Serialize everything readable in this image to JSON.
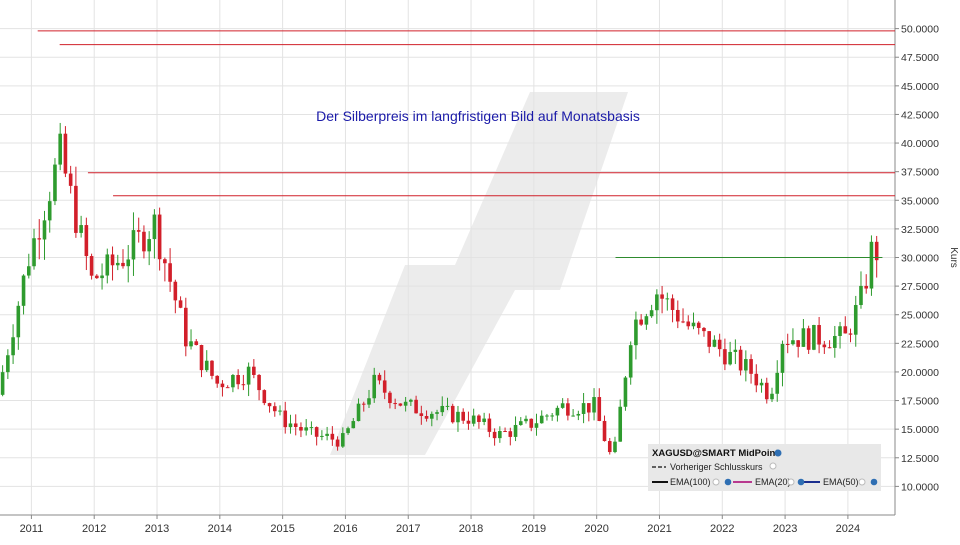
{
  "chart_data": {
    "type": "candlestick",
    "title": "Der Silberpreis im langfristigen Bild auf Monatsbasis",
    "ylabel": "Kurs",
    "xlabel": "",
    "ylim": [
      7.5,
      52.5
    ],
    "xlim": [
      2010.5,
      2024.75
    ],
    "y_ticks": [
      "10.0000",
      "12.5000",
      "15.0000",
      "17.5000",
      "20.0000",
      "22.5000",
      "25.0000",
      "27.5000",
      "30.0000",
      "32.5000",
      "35.0000",
      "37.5000",
      "40.0000",
      "42.5000",
      "45.0000",
      "47.5000",
      "50.0000"
    ],
    "x_ticks": [
      "2011",
      "2012",
      "2013",
      "2014",
      "2015",
      "2016",
      "2017",
      "2018",
      "2019",
      "2020",
      "2021",
      "2022",
      "2023",
      "2024"
    ],
    "grid": true,
    "legend_position": "bottom-right",
    "colors": {
      "up": "#2e9b2e",
      "down": "#d21f2a",
      "resistance": "#d0202a",
      "support": "#2e8b2e",
      "title": "#1a1aa8"
    },
    "horizontal_lines": [
      {
        "value": 49.8,
        "from": 2011.1,
        "to": 2024.75,
        "color": "#d0202a"
      },
      {
        "value": 48.6,
        "from": 2011.45,
        "to": 2024.75,
        "color": "#d0202a"
      },
      {
        "value": 37.4,
        "from": 2011.9,
        "to": 2024.75,
        "color": "#d0202a"
      },
      {
        "value": 35.4,
        "from": 2012.3,
        "to": 2024.75,
        "color": "#d0202a"
      },
      {
        "value": 30.0,
        "from": 2020.3,
        "to": 2024.55,
        "color": "#2e8b2e"
      }
    ],
    "series": [
      {
        "x": [
          2010.5,
          2011.0,
          2011.5,
          2012.0,
          2012.5,
          2013.0,
          2013.5,
          2014.0,
          2014.5,
          2015.0,
          2015.5,
          2016.0,
          2016.5,
          2017.0,
          2017.5,
          2018.0,
          2018.5,
          2019.0,
          2019.5,
          2020.0,
          2020.3,
          2020.6,
          2021.0,
          2021.5,
          2022.0,
          2022.5,
          2022.8,
          2023.0,
          2023.5,
          2024.0,
          2024.3,
          2024.4
        ],
        "close": [
          18,
          30,
          39,
          28,
          30,
          33,
          23,
          19,
          20,
          16,
          14.5,
          14,
          19,
          17,
          16.5,
          16,
          14.5,
          15.5,
          17,
          17,
          12,
          24,
          27,
          24,
          22,
          20,
          18,
          23,
          23,
          23,
          27,
          30.5
        ]
      }
    ],
    "legend": {
      "title": "XAGUSD@SMART MidPoint",
      "items": [
        "Vorheriger Schlusskurs",
        "EMA(100)",
        "EMA(20)",
        "EMA(50)"
      ]
    }
  }
}
